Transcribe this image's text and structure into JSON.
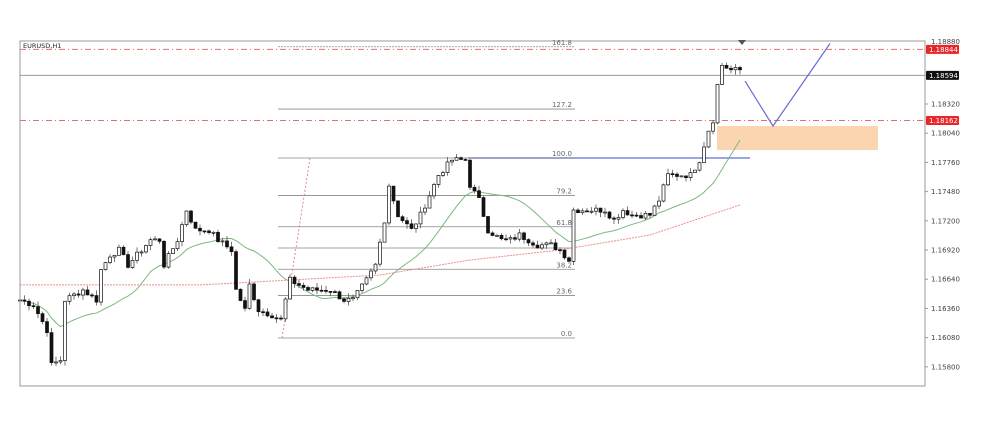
{
  "chart_data": {
    "type": "candlestick",
    "symbol_label": "EURUSD,H1",
    "ylim": [
      1.1566,
      1.1895
    ],
    "y_ticks": [
      "1.18320",
      "1.18040",
      "1.17760",
      "1.17480",
      "1.17200",
      "1.16920",
      "1.16640",
      "1.16360",
      "1.16080",
      "1.15800"
    ],
    "y_tick_values": [
      1.1832,
      1.1804,
      1.1776,
      1.1748,
      1.172,
      1.1692,
      1.1664,
      1.1636,
      1.1608,
      1.158
    ],
    "top_tick_partial": "1.18880",
    "price_tags": [
      {
        "label": "1.18844",
        "value": 1.18844,
        "color": "#e8262a",
        "line": "dashed-red"
      },
      {
        "label": "1.18594",
        "value": 1.18594,
        "color": "#111111",
        "line": "solid-gray"
      },
      {
        "label": "1.18162",
        "value": 1.18162,
        "color": "#e8262a",
        "line": "dashed-red"
      }
    ],
    "price_path": [
      [
        0,
        1.16441
      ],
      [
        3,
        1.16393
      ],
      [
        6,
        1.16153
      ],
      [
        7,
        1.15817
      ],
      [
        9,
        1.15865
      ],
      [
        10,
        1.16441
      ],
      [
        12,
        1.16489
      ],
      [
        14,
        1.16537
      ],
      [
        17,
        1.16441
      ],
      [
        18,
        1.16728
      ],
      [
        20,
        1.16872
      ],
      [
        22,
        1.1692
      ],
      [
        24,
        1.16776
      ],
      [
        27,
        1.1692
      ],
      [
        29,
        1.17016
      ],
      [
        31,
        1.17016
      ],
      [
        32,
        1.16776
      ],
      [
        35,
        1.17016
      ],
      [
        37,
        1.17304
      ],
      [
        39,
        1.17112
      ],
      [
        42,
        1.17112
      ],
      [
        44,
        1.17016
      ],
      [
        47,
        1.1692
      ],
      [
        48,
        1.16537
      ],
      [
        50,
        1.16345
      ],
      [
        51,
        1.16585
      ],
      [
        53,
        1.16345
      ],
      [
        56,
        1.16297
      ],
      [
        58,
        1.16249
      ],
      [
        59,
        1.16441
      ],
      [
        60,
        1.16632
      ],
      [
        62,
        1.16585
      ],
      [
        64,
        1.16537
      ],
      [
        69,
        1.16537
      ],
      [
        72,
        1.16441
      ],
      [
        74,
        1.16441
      ],
      [
        77,
        1.16632
      ],
      [
        79,
        1.16776
      ],
      [
        81,
        1.17208
      ],
      [
        82,
        1.17543
      ],
      [
        83,
        1.17399
      ],
      [
        84,
        1.17256
      ],
      [
        87,
        1.17112
      ],
      [
        89,
        1.17256
      ],
      [
        91,
        1.17447
      ],
      [
        93,
        1.17639
      ],
      [
        96,
        1.17783
      ],
      [
        98,
        1.17783
      ],
      [
        99,
        1.17783
      ],
      [
        100,
        1.17543
      ],
      [
        102,
        1.17399
      ],
      [
        104,
        1.17112
      ],
      [
        107,
        1.17016
      ],
      [
        109,
        1.17016
      ],
      [
        111,
        1.17064
      ],
      [
        113,
        1.17016
      ],
      [
        115,
        1.16968
      ],
      [
        118,
        1.16968
      ],
      [
        120,
        1.1692
      ],
      [
        122,
        1.16824
      ],
      [
        123,
        1.17304
      ],
      [
        126,
        1.17304
      ],
      [
        130,
        1.17304
      ],
      [
        132,
        1.17208
      ],
      [
        134,
        1.17304
      ],
      [
        136,
        1.17256
      ],
      [
        140,
        1.17256
      ],
      [
        142,
        1.17399
      ],
      [
        144,
        1.17639
      ],
      [
        147,
        1.17639
      ],
      [
        149,
        1.17639
      ],
      [
        151,
        1.17783
      ],
      [
        153,
        1.18071
      ],
      [
        154,
        1.18167
      ],
      [
        155,
        1.18502
      ],
      [
        156,
        1.18694
      ],
      [
        158,
        1.18646
      ],
      [
        160,
        1.18646
      ]
    ],
    "ma_fast_period": 20,
    "ma_slow_path": [
      [
        0,
        1.16585
      ],
      [
        20,
        1.16585
      ],
      [
        40,
        1.16585
      ],
      [
        60,
        1.16632
      ],
      [
        80,
        1.1668
      ],
      [
        100,
        1.16824
      ],
      [
        120,
        1.1692
      ],
      [
        140,
        1.17064
      ],
      [
        160,
        1.17352
      ]
    ],
    "fibonacci": {
      "price_0": 1.16076,
      "price_100": 1.17802,
      "levels": [
        {
          "label": "0.0",
          "ratio": 0
        },
        {
          "label": "23.6",
          "ratio": 0.236
        },
        {
          "label": "38.2",
          "ratio": 0.382
        },
        {
          "label": "",
          "ratio": 0.5
        },
        {
          "label": "61.8",
          "ratio": 0.618
        },
        {
          "label": "79.2",
          "ratio": 0.792
        },
        {
          "label": "100.0",
          "ratio": 1.0
        },
        {
          "label": "127.2",
          "ratio": 1.272
        },
        {
          "label": "161.8",
          "ratio": 1.618
        }
      ]
    },
    "resistance_line_price": 1.17802,
    "demand_zone": {
      "top": 1.18109,
      "bottom": 1.17879,
      "color": "#fbd5b0"
    },
    "projection_path_prices": [
      1.1854,
      1.18109,
      1.189
    ],
    "colors": {
      "candles": "#111111",
      "ma_fast": "#7cb87c",
      "ma_slow": "#f08c8c",
      "fib": "#888888",
      "projection": "#6b6bd6",
      "resistance": "#7b85e0"
    }
  }
}
